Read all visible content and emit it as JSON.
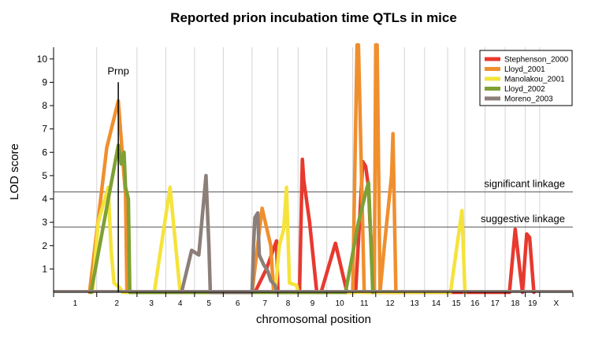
{
  "chart_data": {
    "type": "line",
    "title": "Reported prion incubation time QTLs in mice",
    "xlabel": "chromosomal position",
    "ylabel": "LOD score",
    "ylim": [
      0,
      10.5
    ],
    "yticks": [
      1,
      2,
      3,
      4,
      5,
      6,
      7,
      8,
      9,
      10
    ],
    "xlim": [
      0,
      20
    ],
    "chromosomes": [
      {
        "label": "1",
        "start": 0,
        "end": 1.5
      },
      {
        "label": "2",
        "start": 1.5,
        "end": 2.9
      },
      {
        "label": "3",
        "start": 2.9,
        "end": 3.9
      },
      {
        "label": "4",
        "start": 3.9,
        "end": 4.9
      },
      {
        "label": "5",
        "start": 4.9,
        "end": 5.9
      },
      {
        "label": "6",
        "start": 5.9,
        "end": 6.9
      },
      {
        "label": "7",
        "start": 6.9,
        "end": 7.8
      },
      {
        "label": "8",
        "start": 7.8,
        "end": 8.5
      },
      {
        "label": "9",
        "start": 8.5,
        "end": 9.5
      },
      {
        "label": "10",
        "start": 9.5,
        "end": 10.4
      },
      {
        "label": "11",
        "start": 10.4,
        "end": 11.2
      },
      {
        "label": "12",
        "start": 11.2,
        "end": 12.2
      },
      {
        "label": "13",
        "start": 12.2,
        "end": 12.9
      },
      {
        "label": "14",
        "start": 12.9,
        "end": 13.7
      },
      {
        "label": "15",
        "start": 13.7,
        "end": 14.3
      },
      {
        "label": "16",
        "start": 14.3,
        "end": 15.0
      },
      {
        "label": "17",
        "start": 15.0,
        "end": 15.7
      },
      {
        "label": "18",
        "start": 15.7,
        "end": 16.4
      },
      {
        "label": "19",
        "start": 16.4,
        "end": 16.9
      },
      {
        "label": "X",
        "start": 16.9,
        "end": 18.05
      }
    ],
    "thresholds": [
      {
        "label": "significant linkage",
        "value": 4.3
      },
      {
        "label": "suggestive linkage",
        "value": 2.8
      }
    ],
    "marker": {
      "label": "Prnp",
      "x": 2.25,
      "y": 9.0
    },
    "legend": "top-right",
    "series": [
      {
        "name": "Stephenson_2000",
        "color": "#e8392f",
        "points": [
          [
            7.0,
            0
          ],
          [
            7.4,
            1.0
          ],
          [
            7.75,
            2.2
          ],
          [
            7.8,
            0
          ],
          [
            8.55,
            0
          ],
          [
            8.65,
            5.7
          ],
          [
            8.7,
            4.8
          ],
          [
            8.9,
            3.0
          ],
          [
            9.15,
            0
          ],
          [
            9.3,
            0
          ],
          [
            9.8,
            2.1
          ],
          [
            10.2,
            0
          ],
          [
            10.5,
            0
          ],
          [
            10.75,
            5.6
          ],
          [
            10.85,
            5.4
          ],
          [
            10.95,
            4.5
          ],
          [
            11.0,
            3.0
          ],
          [
            11.15,
            0
          ],
          [
            15.85,
            0
          ],
          [
            16.05,
            2.7
          ],
          [
            16.3,
            0
          ],
          [
            16.45,
            2.5
          ],
          [
            16.55,
            2.35
          ],
          [
            16.7,
            0
          ]
        ]
      },
      {
        "name": "Lloyd_2001",
        "color": "#f08f2e",
        "points": [
          [
            1.25,
            0
          ],
          [
            1.85,
            6.2
          ],
          [
            2.25,
            8.2
          ],
          [
            2.45,
            5.0
          ],
          [
            2.5,
            4.2
          ],
          [
            2.55,
            0
          ],
          [
            6.9,
            0
          ],
          [
            7.25,
            3.6
          ],
          [
            7.55,
            2.0
          ],
          [
            7.65,
            0
          ],
          [
            10.4,
            0
          ],
          [
            10.55,
            10.6
          ],
          [
            10.6,
            10.6
          ],
          [
            10.8,
            0
          ],
          [
            11.15,
            0
          ],
          [
            11.2,
            10.6
          ],
          [
            11.25,
            10.6
          ],
          [
            11.35,
            0
          ],
          [
            11.5,
            2.0
          ],
          [
            11.75,
            5.0
          ],
          [
            11.8,
            6.8
          ],
          [
            11.9,
            0
          ]
        ]
      },
      {
        "name": "Manolakou_2001",
        "color": "#f5e33b",
        "points": [
          [
            1.35,
            0
          ],
          [
            1.55,
            3.0
          ],
          [
            1.9,
            4.5
          ],
          [
            2.0,
            1.8
          ],
          [
            2.1,
            0.4
          ],
          [
            2.3,
            0.2
          ],
          [
            2.4,
            0
          ],
          [
            3.5,
            0
          ],
          [
            4.05,
            4.5
          ],
          [
            4.4,
            0
          ],
          [
            7.7,
            0
          ],
          [
            7.85,
            2.0
          ],
          [
            8.0,
            2.7
          ],
          [
            8.1,
            4.5
          ],
          [
            8.2,
            0.4
          ],
          [
            8.45,
            0.3
          ],
          [
            8.5,
            0
          ],
          [
            13.8,
            0
          ],
          [
            14.05,
            2.2
          ],
          [
            14.2,
            3.5
          ],
          [
            14.3,
            0
          ]
        ]
      },
      {
        "name": "Lloyd_2002",
        "color": "#7fa034",
        "points": [
          [
            1.3,
            0
          ],
          [
            2.25,
            6.3
          ],
          [
            2.35,
            5.5
          ],
          [
            2.45,
            6.0
          ],
          [
            2.5,
            4.5
          ],
          [
            2.6,
            4.0
          ],
          [
            2.65,
            0
          ],
          [
            4.9,
            0
          ],
          [
            5.7,
            0
          ],
          [
            10.15,
            0
          ],
          [
            10.6,
            3.0
          ],
          [
            10.9,
            4.5
          ],
          [
            10.95,
            4.7
          ],
          [
            11.1,
            0
          ]
        ]
      },
      {
        "name": "Moreno_2003",
        "color": "#8c7f7a",
        "points": [
          [
            4.45,
            0
          ],
          [
            4.8,
            1.8
          ],
          [
            5.05,
            1.6
          ],
          [
            5.3,
            5.0
          ],
          [
            5.4,
            2.0
          ],
          [
            5.45,
            0
          ],
          [
            6.9,
            0
          ],
          [
            6.95,
            2.0
          ],
          [
            7.0,
            3.2
          ],
          [
            7.1,
            3.4
          ],
          [
            7.15,
            1.6
          ],
          [
            7.3,
            1.2
          ],
          [
            7.45,
            0.9
          ],
          [
            7.55,
            0.5
          ],
          [
            7.7,
            0.3
          ],
          [
            7.75,
            0
          ]
        ]
      }
    ]
  }
}
